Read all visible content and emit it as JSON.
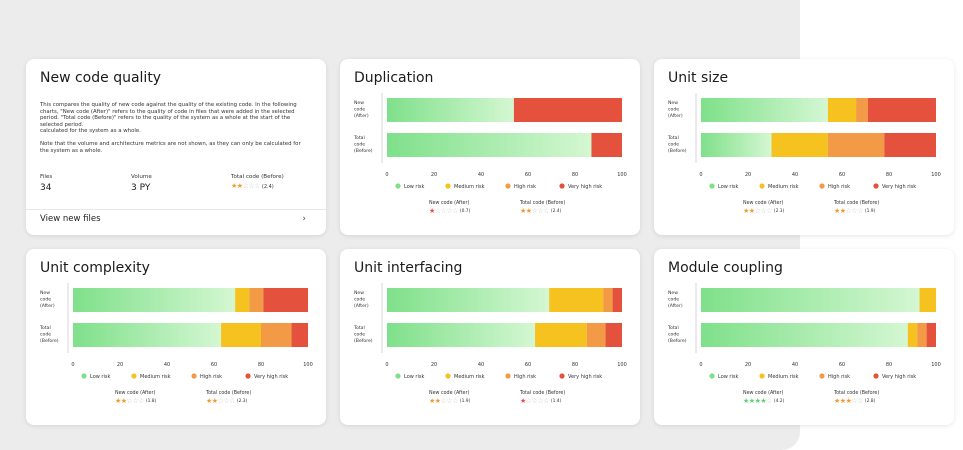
{
  "colors": {
    "low": "#7fe08a",
    "low_fade": "#d4f7d2",
    "medium": "#f6c220",
    "high": "#f29a45",
    "very_high": "#e4513c",
    "star_green": "#5ccf73",
    "star_orange": "#f09a31",
    "star_red": "#e4514a",
    "star_empty": "#c9c9c9"
  },
  "info": {
    "title": "New code quality",
    "desc_p1": "This compares the quality of new code against the quality of the existing code. In the following charts, \"New code (After)\" refers to the quality of code in files that were added in the selected period. \"Total code (Before)\" refers to the quality of the system as a whole at the start of the selected period.",
    "desc_p1b": "calculated for the system as a whole.",
    "desc_p2": "Note that the volume and architecture metrics are not shown, as they can only be calculated for the system as a whole.",
    "files_label": "Files",
    "files_value": "34",
    "volume_label": "Volume",
    "volume_value": "3 PY",
    "total_label": "Total code (Before)",
    "total_stars": 2,
    "total_star_color": "orange",
    "total_value": "(2.4)",
    "view_link": "View new files",
    "view_chevron": "›"
  },
  "legend": [
    "Low risk",
    "Medium risk",
    "High risk",
    "Very high risk"
  ],
  "axis_ticks": [
    "0",
    "20",
    "40",
    "60",
    "80",
    "100"
  ],
  "new_rating_label": "New code (After)",
  "total_rating_label": "Total code (Before)",
  "charts": [
    {
      "id": "duplication",
      "title": "Duplication",
      "chart_data": {
        "type": "bar",
        "categories": [
          "New code (After)",
          "Total code (Before)"
        ],
        "series": [
          {
            "name": "Low risk",
            "values": [
              54,
              87
            ]
          },
          {
            "name": "Medium risk",
            "values": [
              0,
              0
            ]
          },
          {
            "name": "High risk",
            "values": [
              0,
              0
            ]
          },
          {
            "name": "Very high risk",
            "values": [
              46,
              13
            ]
          }
        ],
        "xlim": [
          0,
          100
        ]
      },
      "new_stars": 1,
      "new_star_color": "red",
      "new_value": "(0.7)",
      "total_stars": 2,
      "total_star_color": "orange",
      "total_value": "(2.4)"
    },
    {
      "id": "unit-size",
      "title": "Unit size",
      "chart_data": {
        "type": "bar",
        "categories": [
          "New code (After)",
          "Total code (Before)"
        ],
        "series": [
          {
            "name": "Low risk",
            "values": [
              54,
              30
            ]
          },
          {
            "name": "Medium risk",
            "values": [
              12,
              24
            ]
          },
          {
            "name": "High risk",
            "values": [
              5,
              24
            ]
          },
          {
            "name": "Very high risk",
            "values": [
              29,
              22
            ]
          }
        ],
        "xlim": [
          0,
          100
        ]
      },
      "new_stars": 2,
      "new_star_color": "orange",
      "new_value": "(2.3)",
      "total_stars": 2,
      "total_star_color": "orange",
      "total_value": "(1.9)"
    },
    {
      "id": "unit-complexity",
      "title": "Unit complexity",
      "chart_data": {
        "type": "bar",
        "categories": [
          "New code (After)",
          "Total code (Before)"
        ],
        "series": [
          {
            "name": "Low risk",
            "values": [
              69,
              63
            ]
          },
          {
            "name": "Medium risk",
            "values": [
              6,
              17
            ]
          },
          {
            "name": "High risk",
            "values": [
              6,
              13
            ]
          },
          {
            "name": "Very high risk",
            "values": [
              19,
              7
            ]
          }
        ],
        "xlim": [
          0,
          100
        ]
      },
      "new_stars": 2,
      "new_star_color": "orange",
      "new_value": "(1.8)",
      "total_stars": 2,
      "total_star_color": "orange",
      "total_value": "(2.3)"
    },
    {
      "id": "unit-interfacing",
      "title": "Unit interfacing",
      "chart_data": {
        "type": "bar",
        "categories": [
          "New code (After)",
          "Total code (Before)"
        ],
        "series": [
          {
            "name": "Low risk",
            "values": [
              69,
              63
            ]
          },
          {
            "name": "Medium risk",
            "values": [
              23,
              22
            ]
          },
          {
            "name": "High risk",
            "values": [
              4,
              8
            ]
          },
          {
            "name": "Very high risk",
            "values": [
              4,
              7
            ]
          }
        ],
        "xlim": [
          0,
          100
        ]
      },
      "new_stars": 2,
      "new_star_color": "orange",
      "new_value": "(1.9)",
      "total_stars": 1,
      "total_star_color": "red",
      "total_value": "(1.4)"
    },
    {
      "id": "module-coupling",
      "title": "Module coupling",
      "chart_data": {
        "type": "bar",
        "categories": [
          "New code (After)",
          "Total code (Before)"
        ],
        "series": [
          {
            "name": "Low risk",
            "values": [
              93,
              88
            ]
          },
          {
            "name": "Medium risk",
            "values": [
              7,
              4
            ]
          },
          {
            "name": "High risk",
            "values": [
              0,
              4
            ]
          },
          {
            "name": "Very high risk",
            "values": [
              0,
              4
            ]
          }
        ],
        "xlim": [
          0,
          100
        ]
      },
      "new_stars": 4,
      "new_star_color": "green",
      "new_value": "(4.2)",
      "total_stars": 3,
      "total_star_color": "orange",
      "total_value": "(2.8)"
    }
  ],
  "row_label_new": [
    "New",
    "code",
    "(After)"
  ],
  "row_label_total": [
    "Total",
    "code",
    "(Before)"
  ]
}
